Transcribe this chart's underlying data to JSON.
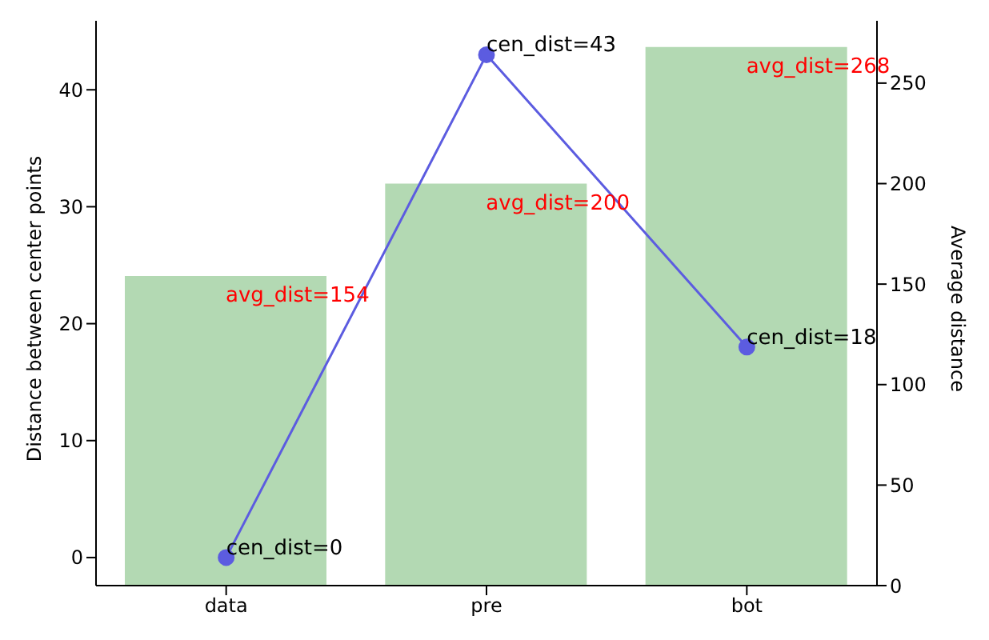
{
  "chart_data": {
    "type": "bar",
    "categories": [
      "data",
      "pre",
      "bot"
    ],
    "ylabel": "Distance between center points",
    "y2label": "Average distance",
    "ylim": [
      -2.4,
      45.9
    ],
    "yticks": [
      0,
      10,
      20,
      30,
      40
    ],
    "y2lim": [
      0,
      281
    ],
    "y2ticks": [
      0,
      50,
      100,
      150,
      200,
      250
    ],
    "grid": false,
    "series": [
      {
        "axis": "y2",
        "color": "#b3d9b3",
        "values": [
          154,
          200,
          268
        ],
        "value_labels": [
          "avg_dist=154",
          "avg_dist=200",
          "avg_dist=268"
        ]
      },
      {
        "type": "line",
        "axis": "y",
        "color": "#5c5ce0",
        "marker": "circle",
        "values": [
          0,
          43,
          18
        ],
        "value_labels": [
          "cen_dist=0",
          "cen_dist=43",
          "cen_dist=18"
        ]
      }
    ]
  }
}
